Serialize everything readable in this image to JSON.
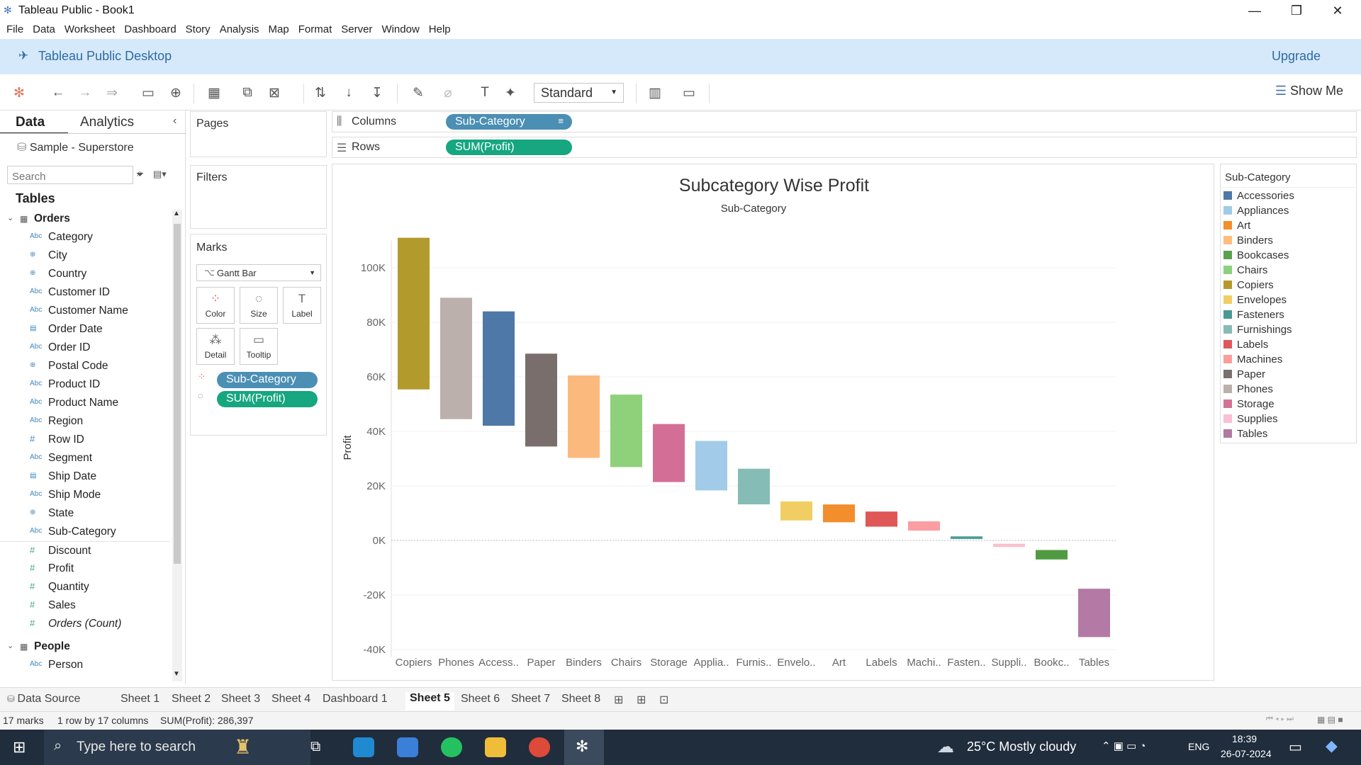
{
  "window": {
    "title": "Tableau Public - Book1",
    "minimize": "—",
    "restore": "❐",
    "close": "✕"
  },
  "menu": [
    "File",
    "Data",
    "Worksheet",
    "Dashboard",
    "Story",
    "Analysis",
    "Map",
    "Format",
    "Server",
    "Window",
    "Help"
  ],
  "promo": {
    "text": "Tableau Public Desktop",
    "upgrade": "Upgrade"
  },
  "toolbar": {
    "fit_mode": "Standard",
    "show_me": "Show Me"
  },
  "left": {
    "tab_data": "Data",
    "tab_analytics": "Analytics",
    "datasource": "Sample - Superstore",
    "search_placeholder": "Search",
    "tables_heading": "Tables"
  },
  "fields": [
    {
      "type": "group",
      "name": "Orders"
    },
    {
      "type": "dim",
      "icon": "Abc",
      "name": "Category"
    },
    {
      "type": "geo",
      "icon": "⊕",
      "name": "City"
    },
    {
      "type": "geo",
      "icon": "⊕",
      "name": "Country"
    },
    {
      "type": "dim",
      "icon": "Abc",
      "name": "Customer ID"
    },
    {
      "type": "dim",
      "icon": "Abc",
      "name": "Customer Name"
    },
    {
      "type": "date",
      "icon": "▤",
      "name": "Order Date"
    },
    {
      "type": "dim",
      "icon": "Abc",
      "name": "Order ID"
    },
    {
      "type": "geo",
      "icon": "⊕",
      "name": "Postal Code"
    },
    {
      "type": "dim",
      "icon": "Abc",
      "name": "Product ID"
    },
    {
      "type": "dim",
      "icon": "Abc",
      "name": "Product Name"
    },
    {
      "type": "dim",
      "icon": "Abc",
      "name": "Region"
    },
    {
      "type": "num",
      "icon": "#",
      "name": "Row ID"
    },
    {
      "type": "dim",
      "icon": "Abc",
      "name": "Segment"
    },
    {
      "type": "date",
      "icon": "▤",
      "name": "Ship Date"
    },
    {
      "type": "dim",
      "icon": "Abc",
      "name": "Ship Mode"
    },
    {
      "type": "geo",
      "icon": "⊕",
      "name": "State"
    },
    {
      "type": "dim",
      "icon": "Abc",
      "name": "Sub-Category"
    },
    {
      "type": "meas",
      "icon": "#",
      "name": "Discount"
    },
    {
      "type": "meas",
      "icon": "#",
      "name": "Profit"
    },
    {
      "type": "meas",
      "icon": "#",
      "name": "Quantity"
    },
    {
      "type": "meas",
      "icon": "#",
      "name": "Sales"
    },
    {
      "type": "meas",
      "icon": "#",
      "name": "Orders (Count)",
      "italic": true
    },
    {
      "type": "group",
      "name": "People"
    },
    {
      "type": "dim",
      "icon": "Abc",
      "name": "Person"
    }
  ],
  "cards": {
    "pages": "Pages",
    "filters": "Filters",
    "marks": "Marks",
    "mark_type": "Gantt Bar",
    "buttons": [
      "Color",
      "Size",
      "Label",
      "Detail",
      "Tooltip"
    ],
    "mark_pills": [
      "Sub-Category",
      "SUM(Profit)"
    ]
  },
  "shelves": {
    "columns_label": "Columns",
    "rows_label": "Rows",
    "columns_pill": "Sub-Category",
    "rows_pill": "SUM(Profit)"
  },
  "chart_data": {
    "type": "bar",
    "title": "Subcategory Wise Profit",
    "header": "Sub-Category",
    "ylabel": "Profit",
    "ylim": [
      -40000,
      110000
    ],
    "yticks": [
      {
        "v": 100000,
        "t": "100K"
      },
      {
        "v": 80000,
        "t": "80K"
      },
      {
        "v": 60000,
        "t": "60K"
      },
      {
        "v": 40000,
        "t": "40K"
      },
      {
        "v": 20000,
        "t": "20K"
      },
      {
        "v": 0,
        "t": "0K"
      },
      {
        "v": -20000,
        "t": "-20K"
      },
      {
        "v": -40000,
        "t": "-40K"
      }
    ],
    "categories": [
      "Copiers",
      "Phones",
      "Access..",
      "Paper",
      "Binders",
      "Chairs",
      "Storage",
      "Applia..",
      "Furnis..",
      "Envelo..",
      "Art",
      "Labels",
      "Machi..",
      "Fasten..",
      "Suppli..",
      "Bookc..",
      "Tables"
    ],
    "gantt_start": [
      111000,
      89000,
      84000,
      68500,
      60500,
      53500,
      42700,
      36500,
      26300,
      14300,
      13200,
      10600,
      7000,
      1500,
      -1200,
      -3500,
      -17700
    ],
    "profit": [
      55618,
      44516,
      41937,
      34054,
      30222,
      26590,
      21279,
      18138,
      13059,
      6964,
      6531,
      5546,
      3385,
      950,
      -1189,
      -3473,
      -17725
    ],
    "colors": [
      "#b39a2d",
      "#bcb0ad",
      "#4d78a8",
      "#7a6e6d",
      "#fcb97d",
      "#8fd07b",
      "#d36f96",
      "#a1cbe8",
      "#86bcb6",
      "#f1ce63",
      "#f28e2b",
      "#e05758",
      "#fb9da1",
      "#4a9c95",
      "#fbbfcd",
      "#519a41",
      "#b27aa5"
    ]
  },
  "legend": {
    "title": "Sub-Category",
    "items": [
      {
        "name": "Accessories",
        "color": "#4e79a7"
      },
      {
        "name": "Appliances",
        "color": "#a0cbe8"
      },
      {
        "name": "Art",
        "color": "#f28e2b"
      },
      {
        "name": "Binders",
        "color": "#ffbe7d"
      },
      {
        "name": "Bookcases",
        "color": "#59a14f"
      },
      {
        "name": "Chairs",
        "color": "#8cd17d"
      },
      {
        "name": "Copiers",
        "color": "#b6992d"
      },
      {
        "name": "Envelopes",
        "color": "#f1ce63"
      },
      {
        "name": "Fasteners",
        "color": "#499894"
      },
      {
        "name": "Furnishings",
        "color": "#86bcb6"
      },
      {
        "name": "Labels",
        "color": "#e15759"
      },
      {
        "name": "Machines",
        "color": "#ff9d9a"
      },
      {
        "name": "Paper",
        "color": "#79706e"
      },
      {
        "name": "Phones",
        "color": "#bab0ac"
      },
      {
        "name": "Storage",
        "color": "#d37295"
      },
      {
        "name": "Supplies",
        "color": "#fabfd2"
      },
      {
        "name": "Tables",
        "color": "#b07aa1"
      }
    ]
  },
  "sheets": {
    "data_source": "Data Source",
    "tabs": [
      "Sheet 1",
      "Sheet 2",
      "Sheet 3",
      "Sheet 4",
      "Dashboard 1",
      "Sheet 5",
      "Sheet 6",
      "Sheet 7",
      "Sheet 8"
    ],
    "active": "Sheet 5"
  },
  "status": {
    "marks": "17 marks",
    "dims": "1 row by 17 columns",
    "sum": "SUM(Profit): 286,397"
  },
  "taskbar": {
    "search": "Type here to search",
    "weather": "25°C  Mostly cloudy",
    "lang": "ENG",
    "time": "18:39",
    "date": "26-07-2024"
  }
}
